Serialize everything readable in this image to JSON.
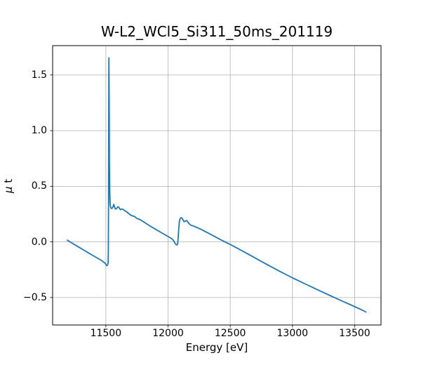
{
  "figure": {
    "background": "#ffffff",
    "text_color": "#000000"
  },
  "chart_data": {
    "type": "line",
    "title": "W-L2_WCl5_Si311_50ms_201119",
    "xlabel": "Energy [eV]",
    "ylabel": "μ t",
    "ylabel_math": "μ",
    "ylabel_rest": " t",
    "legend": "none",
    "grid": true,
    "grid_color": "#b0b0b0",
    "spine_color": "#000000",
    "line_color": "#1f77b4",
    "xlim": [
      11072,
      13712
    ],
    "ylim": [
      -0.747,
      1.764
    ],
    "x_ticks": [
      11500,
      12000,
      12500,
      13000,
      13500
    ],
    "x_tick_labels": [
      "11500",
      "12000",
      "12500",
      "13000",
      "13500"
    ],
    "y_ticks": [
      1.5,
      1.0,
      0.5,
      0.0,
      -0.5
    ],
    "y_tick_labels": [
      "1.5",
      "1.0",
      "0.5",
      "0.0",
      "−0.5"
    ],
    "series": [
      {
        "name": "mu_t_spectrum",
        "points": [
          [
            11190,
            0.015
          ],
          [
            11215,
            -0.002
          ],
          [
            11265,
            -0.036
          ],
          [
            11315,
            -0.069
          ],
          [
            11365,
            -0.102
          ],
          [
            11415,
            -0.135
          ],
          [
            11465,
            -0.167
          ],
          [
            11495,
            -0.193
          ],
          [
            11506,
            -0.213
          ],
          [
            11513,
            -0.21
          ],
          [
            11518,
            -0.188
          ],
          [
            11520,
            -0.08
          ],
          [
            11521.5,
            0.35
          ],
          [
            11523,
            1.0
          ],
          [
            11524.5,
            1.655
          ],
          [
            11526.5,
            1.25
          ],
          [
            11528.5,
            0.72
          ],
          [
            11531,
            0.46
          ],
          [
            11534,
            0.345
          ],
          [
            11538,
            0.312
          ],
          [
            11544,
            0.3
          ],
          [
            11552,
            0.304
          ],
          [
            11559,
            0.32
          ],
          [
            11564,
            0.337
          ],
          [
            11569,
            0.318
          ],
          [
            11575,
            0.297
          ],
          [
            11581,
            0.295
          ],
          [
            11589,
            0.304
          ],
          [
            11597,
            0.316
          ],
          [
            11604,
            0.312
          ],
          [
            11611,
            0.297
          ],
          [
            11618,
            0.289
          ],
          [
            11625,
            0.294
          ],
          [
            11632,
            0.295
          ],
          [
            11642,
            0.288
          ],
          [
            11652,
            0.281
          ],
          [
            11663,
            0.273
          ],
          [
            11673,
            0.265
          ],
          [
            11683,
            0.257
          ],
          [
            11692,
            0.246
          ],
          [
            11702,
            0.239
          ],
          [
            11713,
            0.234
          ],
          [
            11723,
            0.231
          ],
          [
            11733,
            0.226
          ],
          [
            11743,
            0.217
          ],
          [
            11753,
            0.209
          ],
          [
            11764,
            0.205
          ],
          [
            11776,
            0.2
          ],
          [
            11789,
            0.19
          ],
          [
            11802,
            0.181
          ],
          [
            11816,
            0.171
          ],
          [
            11831,
            0.16
          ],
          [
            11851,
            0.146
          ],
          [
            11871,
            0.132
          ],
          [
            11891,
            0.119
          ],
          [
            11911,
            0.106
          ],
          [
            11931,
            0.093
          ],
          [
            11951,
            0.08
          ],
          [
            11971,
            0.067
          ],
          [
            11991,
            0.054
          ],
          [
            12011,
            0.041
          ],
          [
            12031,
            0.027
          ],
          [
            12046,
            0.009
          ],
          [
            12056,
            -0.013
          ],
          [
            12066,
            -0.026
          ],
          [
            12073,
            -0.028
          ],
          [
            12078,
            -0.012
          ],
          [
            12082,
            0.045
          ],
          [
            12086,
            0.125
          ],
          [
            12091,
            0.18
          ],
          [
            12097,
            0.209
          ],
          [
            12105,
            0.218
          ],
          [
            12113,
            0.212
          ],
          [
            12121,
            0.197
          ],
          [
            12129,
            0.182
          ],
          [
            12137,
            0.184
          ],
          [
            12146,
            0.192
          ],
          [
            12153,
            0.189
          ],
          [
            12161,
            0.175
          ],
          [
            12171,
            0.162
          ],
          [
            12181,
            0.152
          ],
          [
            12191,
            0.147
          ],
          [
            12201,
            0.144
          ],
          [
            12213,
            0.139
          ],
          [
            12224,
            0.133
          ],
          [
            12242,
            0.125
          ],
          [
            12262,
            0.114
          ],
          [
            12282,
            0.103
          ],
          [
            12302,
            0.091
          ],
          [
            12332,
            0.074
          ],
          [
            12362,
            0.056
          ],
          [
            12392,
            0.038
          ],
          [
            12422,
            0.02
          ],
          [
            12452,
            0.003
          ],
          [
            12482,
            -0.014
          ],
          [
            12512,
            -0.031
          ],
          [
            12552,
            -0.054
          ],
          [
            12602,
            -0.084
          ],
          [
            12652,
            -0.115
          ],
          [
            12702,
            -0.146
          ],
          [
            12752,
            -0.177
          ],
          [
            12802,
            -0.207
          ],
          [
            12852,
            -0.237
          ],
          [
            12902,
            -0.267
          ],
          [
            12952,
            -0.296
          ],
          [
            13002,
            -0.324
          ],
          [
            13052,
            -0.351
          ],
          [
            13102,
            -0.378
          ],
          [
            13152,
            -0.404
          ],
          [
            13202,
            -0.43
          ],
          [
            13252,
            -0.456
          ],
          [
            13302,
            -0.482
          ],
          [
            13352,
            -0.508
          ],
          [
            13402,
            -0.533
          ],
          [
            13452,
            -0.558
          ],
          [
            13502,
            -0.583
          ],
          [
            13552,
            -0.608
          ],
          [
            13590,
            -0.63
          ]
        ]
      }
    ]
  }
}
